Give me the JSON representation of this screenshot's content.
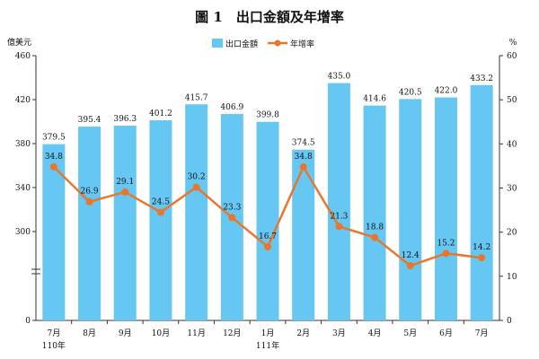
{
  "chart_data": {
    "type": "bar",
    "title": "圖 1　出口金額及年增率",
    "left_unit": "億美元",
    "right_unit": "%",
    "categories": [
      "7月",
      "8月",
      "9月",
      "10月",
      "11月",
      "12月",
      "1月",
      "2月",
      "3月",
      "4月",
      "5月",
      "6月",
      "7月"
    ],
    "year_labels": [
      "110年",
      "",
      "",
      "",
      "",
      "",
      "111年",
      "",
      "",
      "",
      "",
      "",
      ""
    ],
    "series": [
      {
        "name": "出口金額",
        "type": "bar",
        "axis": "left",
        "color": "#66c7f2",
        "values": [
          379.5,
          395.4,
          396.3,
          401.2,
          415.7,
          406.9,
          399.8,
          374.5,
          435.0,
          414.6,
          420.5,
          422.0,
          433.2
        ]
      },
      {
        "name": "年增率",
        "type": "line",
        "axis": "right",
        "color": "#e8772e",
        "values": [
          34.8,
          26.9,
          29.1,
          24.5,
          30.2,
          23.3,
          16.7,
          34.8,
          21.3,
          18.8,
          12.4,
          15.2,
          14.2
        ]
      }
    ],
    "left_axis": {
      "ticks": [
        "460",
        "420",
        "380",
        "340",
        "300",
        "0"
      ],
      "broken": true
    },
    "right_axis": {
      "ticks": [
        "60",
        "50",
        "40",
        "30",
        "20",
        "10",
        "0"
      ],
      "ylim": [
        0,
        60
      ]
    },
    "legend_position": "top-center"
  }
}
